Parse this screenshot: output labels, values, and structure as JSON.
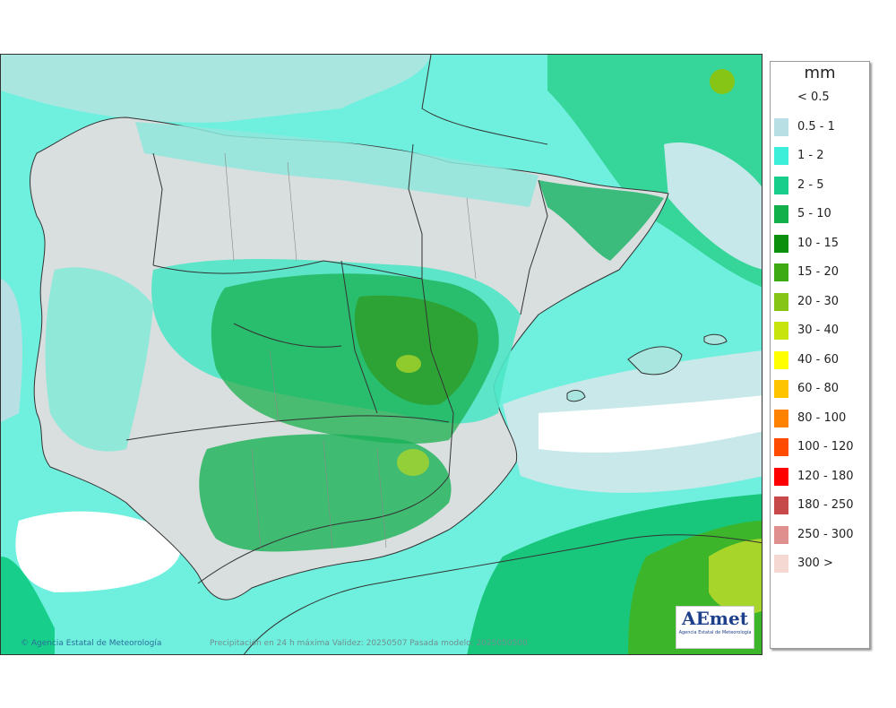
{
  "map": {
    "credit": "Agencia Estatal de Meteorología",
    "caption": "Precipitación en 24 h máxima  Validez: 20250507 Pasada modelo: 2025050500",
    "logo_text": "AEmet",
    "logo_subtext": "Agencia Estatal de Meteorología"
  },
  "legend": {
    "unit": "mm",
    "classes": [
      {
        "label": "< 0.5",
        "color": "#ffffff"
      },
      {
        "label": "0.5 - 1",
        "color": "#b8dfe3"
      },
      {
        "label": "1 - 2",
        "color": "#3cefd9"
      },
      {
        "label": "2 - 5",
        "color": "#17cf8a"
      },
      {
        "label": "5 - 10",
        "color": "#12b04a"
      },
      {
        "label": "10 - 15",
        "color": "#0b8f0c"
      },
      {
        "label": "15 - 20",
        "color": "#3daa13"
      },
      {
        "label": "20 - 30",
        "color": "#86c516"
      },
      {
        "label": "30 - 40",
        "color": "#c8e40f"
      },
      {
        "label": "40 - 60",
        "color": "#ffff00"
      },
      {
        "label": "60 - 80",
        "color": "#ffc400"
      },
      {
        "label": "80 - 100",
        "color": "#ff8300"
      },
      {
        "label": "100 - 120",
        "color": "#ff4b00"
      },
      {
        "label": "120 - 180",
        "color": "#ff0000"
      },
      {
        "label": "180 - 250",
        "color": "#c74a4a"
      },
      {
        "label": "250 - 300",
        "color": "#e08f8f"
      },
      {
        "label": "300 >",
        "color": "#f6d8d3"
      }
    ]
  }
}
